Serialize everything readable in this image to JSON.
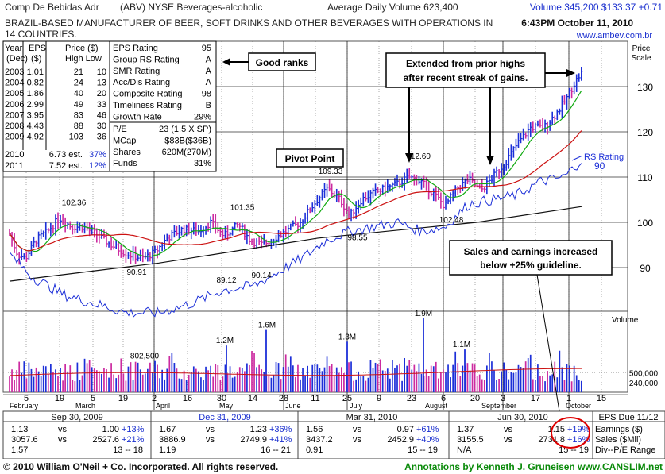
{
  "header": {
    "company": "Comp De Bebidas Adr",
    "ticker_line": "(ABV)  NYSE  Beverages-alcoholic",
    "avg_volume": "Average Daily Volume 623,400",
    "volume_quote": "Volume 345,200  $133.37 +0.71",
    "description_1": "BRAZIL-BASED MANUFACTURER OF BEER, SOFT DRINKS AND OTHER    BEVERAGES WITH OPERATIONS IN",
    "description_2": "14 COUNTRIES.",
    "datetime": "6:43PM October 11, 2010",
    "website": "www.ambev.com.br"
  },
  "history_table": {
    "headers": [
      "Year (Dec)",
      "EPS ($)",
      "Price ($) High Low"
    ],
    "header_top": [
      "Year",
      "EPS",
      "Price ($)"
    ],
    "header_bottom": [
      "(Dec)",
      "($)",
      "High Low"
    ],
    "rows": [
      {
        "year": "2003",
        "eps": "1.01",
        "high": "21",
        "low": "10"
      },
      {
        "year": "2004",
        "eps": "0.82",
        "high": "24",
        "low": "13"
      },
      {
        "year": "2005",
        "eps": "1.86",
        "high": "40",
        "low": "20"
      },
      {
        "year": "2006",
        "eps": "2.99",
        "high": "49",
        "low": "33"
      },
      {
        "year": "2007",
        "eps": "3.95",
        "high": "83",
        "low": "46"
      },
      {
        "year": "2008",
        "eps": "4.43",
        "high": "88",
        "low": "30"
      },
      {
        "year": "2009",
        "eps": "4.92",
        "high": "103",
        "low": "36"
      }
    ],
    "estimates": [
      {
        "year": "2010",
        "eps": "6.73 est.",
        "pct": "37%"
      },
      {
        "year": "2011",
        "eps": "7.52 est.",
        "pct": "12%"
      }
    ]
  },
  "ratings": [
    {
      "label": "EPS Rating",
      "value": "95"
    },
    {
      "label": "Group RS Rating",
      "value": "A"
    },
    {
      "label": "SMR Rating",
      "value": "A"
    },
    {
      "label": "Acc/Dis Rating",
      "value": "A"
    },
    {
      "label": "Composite Rating",
      "value": "98"
    },
    {
      "label": "Timeliness Rating",
      "value": "B"
    },
    {
      "label": "Growth Rate",
      "value": "29%"
    }
  ],
  "fundamentals": [
    {
      "label": "P/E",
      "value": "23 (1.5 X SP)"
    },
    {
      "label": "MCap",
      "value": "$83B($36B)"
    },
    {
      "label": "Shares",
      "value": "620M(270M)"
    },
    {
      "label": "Funds",
      "value": "31%"
    }
  ],
  "annotations": {
    "good_ranks": "Good ranks",
    "extended_1": "Extended from prior highs",
    "extended_2": "after recent streak of gains.",
    "pivot_point": "Pivot Point",
    "sales_1": "Sales and earnings increased",
    "sales_2": "below +25% guideline."
  },
  "chart_data": {
    "type": "bar",
    "price_scale_label": "Price Scale",
    "price_ticks": [
      90,
      100,
      110,
      120,
      130
    ],
    "ylim": [
      83,
      138
    ],
    "rs_label": "RS Rating",
    "rs_value": "90",
    "price_labels": [
      {
        "text": "102.36",
        "value": 102.36
      },
      {
        "text": "90.91",
        "value": 90.91
      },
      {
        "text": "101.35",
        "value": 101.35
      },
      {
        "text": "89.12",
        "value": 89.12
      },
      {
        "text": "90.14",
        "value": 90.14
      },
      {
        "text": "109.33",
        "value": 109.33
      },
      {
        "text": "98.55",
        "value": 98.55
      },
      {
        "text": "112.60",
        "value": 112.6
      },
      {
        "text": "102.48",
        "value": 102.48
      }
    ],
    "volume_title": "Volume",
    "volume_ticks": [
      {
        "text": "500,000",
        "value": 500000
      },
      {
        "text": "240,000",
        "value": 240000
      }
    ],
    "volume_labels": [
      {
        "text": "802,500",
        "value": 802500
      },
      {
        "text": "1.2M",
        "value": 1200000
      },
      {
        "text": "1.6M",
        "value": 1600000
      },
      {
        "text": "1.3M",
        "value": 1300000
      },
      {
        "text": "1.9M",
        "value": 1900000
      },
      {
        "text": "1.1M",
        "value": 1100000
      }
    ],
    "date_ticks": [
      "5",
      "19",
      "5",
      "19",
      "2",
      "16",
      "30",
      "14",
      "28",
      "11",
      "25",
      "9",
      "23",
      "6",
      "20",
      "3",
      "17",
      "1",
      "15"
    ],
    "months": [
      "February",
      "March",
      "April",
      "May",
      "June",
      "July",
      "August",
      "September",
      "October"
    ]
  },
  "quarterly": {
    "headers": [
      "Sep 30, 2009",
      "Dec 31, 2009",
      "Mar 31, 2010",
      "Jun 30, 2010"
    ],
    "eps_due": "EPS Due 11/12",
    "earnings_row": [
      {
        "cur": "1.13",
        "vs": "vs",
        "prev": "1.00",
        "pct": "+13%"
      },
      {
        "cur": "1.67",
        "vs": "vs",
        "prev": "1.23",
        "pct": "+36%"
      },
      {
        "cur": "1.56",
        "vs": "vs",
        "prev": "0.97",
        "pct": "+61%"
      },
      {
        "cur": "1.37",
        "vs": "vs",
        "prev": "1.15",
        "pct": "+19%"
      }
    ],
    "sales_row": [
      {
        "cur": "3057.6",
        "vs": "vs",
        "prev": "2527.6",
        "pct": "+21%"
      },
      {
        "cur": "3886.9",
        "vs": "vs",
        "prev": "2749.9",
        "pct": "+41%"
      },
      {
        "cur": "3437.2",
        "vs": "vs",
        "prev": "2452.9",
        "pct": "+40%"
      },
      {
        "cur": "3155.5",
        "vs": "vs",
        "prev": "2731.8",
        "pct": "+16%"
      }
    ],
    "pe_row": [
      {
        "cur": "1.57",
        "range": "13 -- 18"
      },
      {
        "cur": "1.19",
        "range": "16 -- 21"
      },
      {
        "cur": "0.91",
        "range": "15 -- 19"
      },
      {
        "cur": "N/A",
        "range": "15 -- 19"
      }
    ],
    "labels": [
      "Earnings ($)",
      "Sales ($Mil)",
      "Div--P/E Range"
    ]
  },
  "footer": {
    "copyright": "© 2010 William O'Neil + Co. Incorporated. All rights reserved.",
    "credit": "Annotations by Kenneth J. Gruneisen www.CANSLIM.net"
  },
  "colors": {
    "blue_bar": "#1c2fd8",
    "pink_bar": "#cc2aa0",
    "green_ma": "#11aa11",
    "red_ma": "#cc1111",
    "rs_line": "#1c2fd8",
    "header_blue": "#1a2fcf",
    "footer_green": "#0a8a0a",
    "circle_red": "#dd0000"
  }
}
